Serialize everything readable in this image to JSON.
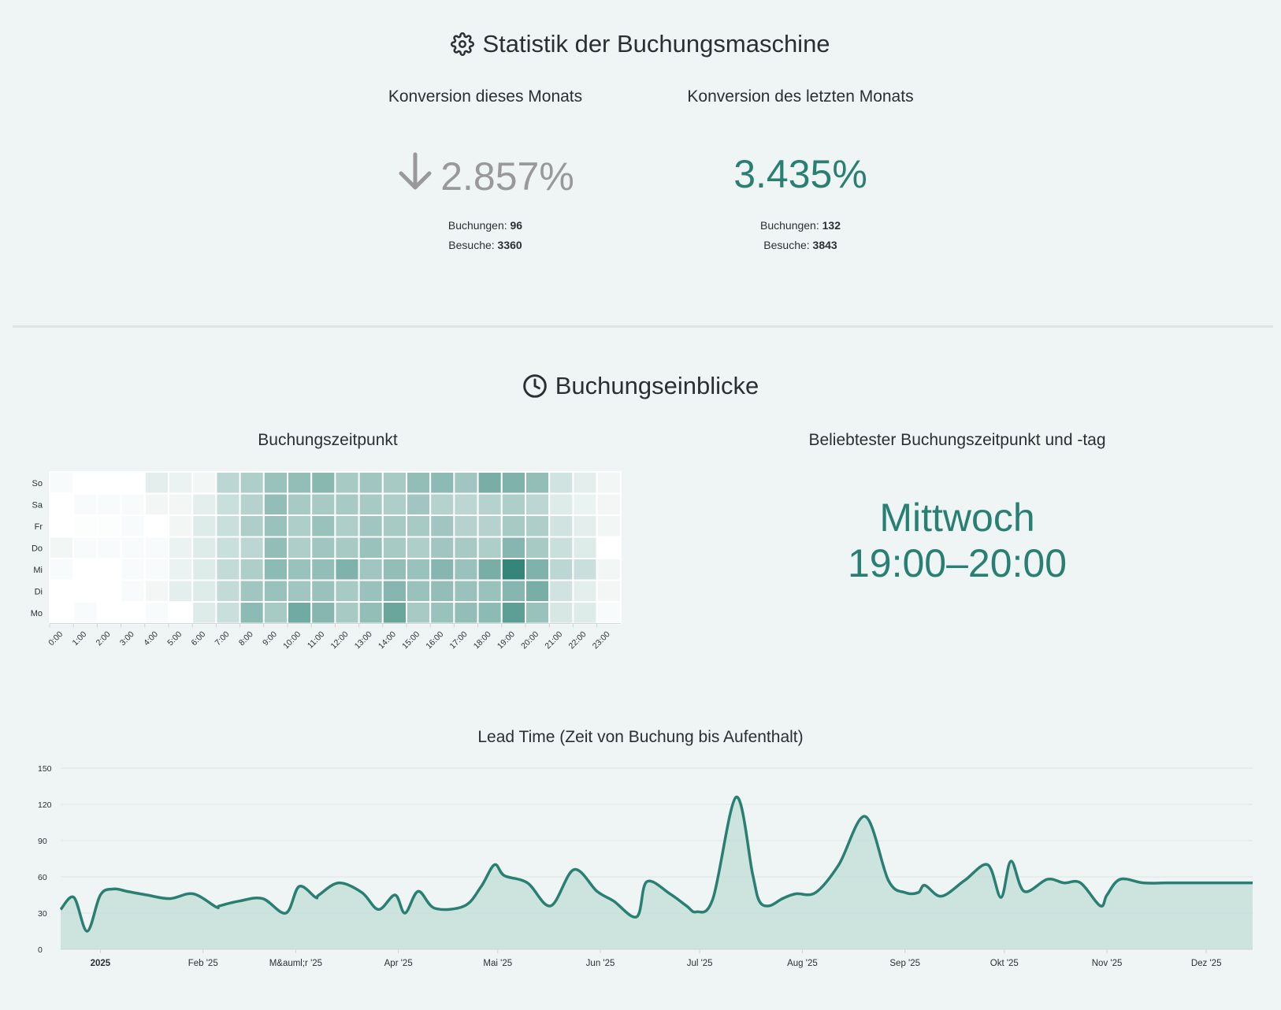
{
  "colors": {
    "accent": "#2a7f73",
    "muted": "#999999",
    "text": "#2b2f33",
    "background": "#eff5f4"
  },
  "stats": {
    "title": "Statistik der Buchungsmaschine",
    "title_icon": "gear-icon",
    "current_month": {
      "title": "Konversion dieses Monats",
      "value": "2.857%",
      "trend_icon": "arrow-down-icon",
      "bookings_label": "Buchungen:",
      "bookings": "96",
      "visits_label": "Besuche:",
      "visits": "3360"
    },
    "last_month": {
      "title": "Konversion des letzten Monats",
      "value": "3.435%",
      "bookings_label": "Buchungen:",
      "bookings": "132",
      "visits_label": "Besuche:",
      "visits": "3843"
    }
  },
  "insights": {
    "title": "Buchungseinblicke",
    "title_icon": "clock-icon",
    "heatmap_title": "Buchungszeitpunkt",
    "popular_title": "Beliebtester Buchungszeitpunkt und -tag",
    "popular_day": "Mittwoch",
    "popular_time": "19:00–20:00"
  },
  "lead_time": {
    "title": "Lead Time (Zeit von Buchung bis Aufenthalt)"
  },
  "chart_data": [
    {
      "type": "heatmap",
      "title": "Buchungszeitpunkt",
      "x_categories": [
        "0:00",
        "1:00",
        "2:00",
        "3:00",
        "4:00",
        "5:00",
        "6:00",
        "7:00",
        "8:00",
        "9:00",
        "10:00",
        "11:00",
        "12:00",
        "13:00",
        "14:00",
        "15:00",
        "16:00",
        "17:00",
        "18:00",
        "19:00",
        "20:00",
        "21:00",
        "22:00",
        "23:00"
      ],
      "y_categories": [
        "So",
        "Sa",
        "Fr",
        "Do",
        "Mi",
        "Di",
        "Mo"
      ],
      "values": [
        [
          2,
          0,
          0,
          0,
          8,
          6,
          4,
          20,
          24,
          30,
          32,
          35,
          26,
          28,
          26,
          32,
          34,
          28,
          40,
          38,
          32,
          14,
          8,
          4
        ],
        [
          0,
          2,
          2,
          2,
          4,
          4,
          8,
          16,
          22,
          32,
          26,
          26,
          26,
          26,
          24,
          28,
          22,
          20,
          22,
          24,
          20,
          10,
          6,
          4
        ],
        [
          0,
          1,
          1,
          2,
          0,
          4,
          10,
          16,
          24,
          30,
          24,
          30,
          24,
          28,
          26,
          26,
          28,
          22,
          22,
          26,
          24,
          14,
          8,
          4
        ],
        [
          4,
          2,
          2,
          2,
          2,
          6,
          10,
          16,
          20,
          32,
          24,
          28,
          26,
          30,
          26,
          24,
          28,
          26,
          24,
          36,
          26,
          16,
          10,
          0
        ],
        [
          2,
          0,
          0,
          2,
          2,
          6,
          10,
          18,
          24,
          34,
          30,
          32,
          38,
          28,
          32,
          30,
          36,
          30,
          40,
          60,
          38,
          20,
          16,
          4
        ],
        [
          0,
          0,
          0,
          2,
          4,
          8,
          10,
          18,
          28,
          30,
          28,
          30,
          26,
          30,
          36,
          30,
          32,
          30,
          30,
          36,
          40,
          14,
          8,
          4
        ],
        [
          0,
          2,
          0,
          0,
          2,
          0,
          10,
          16,
          34,
          26,
          42,
          36,
          26,
          32,
          44,
          26,
          30,
          32,
          34,
          48,
          30,
          12,
          10,
          2
        ]
      ],
      "max_value": 60
    },
    {
      "type": "area",
      "title": "Lead Time (Zeit von Buchung bis Aufenthalt)",
      "x_tick_labels": [
        "2025",
        "Feb '25",
        "M&auml;r '25",
        "Apr '25",
        "Mai '25",
        "Jun '25",
        "Jul '25",
        "Aug '25",
        "Sep '25",
        "Okt '25",
        "Nov '25",
        "Dez '25"
      ],
      "ylim": [
        0,
        150
      ],
      "y_ticks": [
        0,
        30,
        60,
        90,
        120,
        150
      ],
      "grid": true,
      "x": [
        "2024-12-20",
        "2024-12-24",
        "2024-12-28",
        "2025-01-01",
        "2025-01-05",
        "2025-01-09",
        "2025-01-15",
        "2025-01-22",
        "2025-01-29",
        "2025-02-05",
        "2025-02-06",
        "2025-02-12",
        "2025-02-19",
        "2025-02-26",
        "2025-03-02",
        "2025-03-07",
        "2025-03-08",
        "2025-03-14",
        "2025-03-21",
        "2025-03-26",
        "2025-03-31",
        "2025-04-03",
        "2025-04-07",
        "2025-04-12",
        "2025-04-21",
        "2025-04-26",
        "2025-04-30",
        "2025-05-03",
        "2025-05-10",
        "2025-05-17",
        "2025-05-24",
        "2025-05-31",
        "2025-06-05",
        "2025-06-12",
        "2025-06-15",
        "2025-06-22",
        "2025-06-27",
        "2025-06-30",
        "2025-07-05",
        "2025-07-12",
        "2025-07-17",
        "2025-07-19",
        "2025-07-22",
        "2025-07-26",
        "2025-07-30",
        "2025-08-05",
        "2025-08-12",
        "2025-08-20",
        "2025-08-27",
        "2025-09-01",
        "2025-09-05",
        "2025-09-07",
        "2025-09-12",
        "2025-09-19",
        "2025-09-26",
        "2025-09-30",
        "2025-10-03",
        "2025-10-07",
        "2025-10-14",
        "2025-10-19",
        "2025-10-24",
        "2025-10-30",
        "2025-11-01",
        "2025-11-05",
        "2025-11-12",
        "2025-11-19",
        "2025-11-26",
        "2025-12-02",
        "2025-12-04",
        "2025-12-10",
        "2025-12-15"
      ],
      "y": [
        33,
        43,
        15,
        45,
        50,
        48,
        45,
        42,
        46,
        35,
        36,
        40,
        42,
        30,
        52,
        43,
        45,
        55,
        47,
        33,
        45,
        30,
        48,
        34,
        36,
        52,
        70,
        61,
        55,
        36,
        66,
        48,
        40,
        27,
        56,
        46,
        36,
        31,
        42,
        126,
        62,
        40,
        36,
        42,
        46,
        47,
        70,
        110,
        57,
        47,
        47,
        53,
        44,
        57,
        70,
        43,
        73,
        48,
        58,
        55,
        55,
        36,
        45,
        58,
        55,
        55,
        55,
        55,
        55,
        55,
        55
      ],
      "fill_color": "#c5dfd9",
      "line_color": "#2a7f73"
    }
  ]
}
